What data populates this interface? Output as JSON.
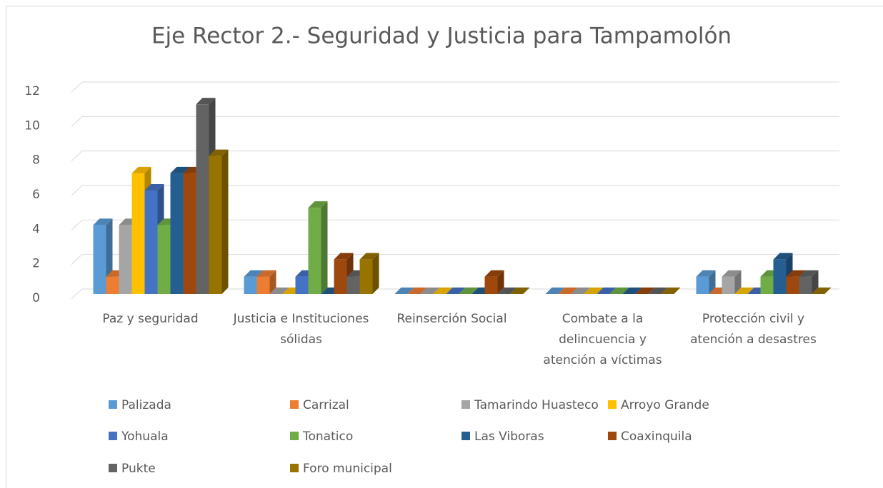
{
  "chart_data": {
    "type": "bar",
    "title": "Eje Rector 2.- Seguridad y Justicia para Tampamolón",
    "categories": [
      "Paz y seguridad",
      "Justicia e Instituciones sólidas",
      "Reinserción Social",
      "Combate a la delincuencia y atención a víctimas",
      "Protección civil y atención a desastres"
    ],
    "series": [
      {
        "name": "Palizada",
        "color": "#5b9bd5",
        "values": [
          4,
          1,
          0,
          0,
          1
        ]
      },
      {
        "name": "Carrizal",
        "color": "#ed7d31",
        "values": [
          1,
          1,
          0,
          0,
          0
        ]
      },
      {
        "name": "Tamarindo Huasteco",
        "color": "#a5a5a5",
        "values": [
          4,
          0,
          0,
          0,
          1
        ]
      },
      {
        "name": "Arroyo Grande",
        "color": "#ffc000",
        "values": [
          7,
          0,
          0,
          0,
          0
        ]
      },
      {
        "name": "Yohuala",
        "color": "#4472c4",
        "values": [
          6,
          1,
          0,
          0,
          0
        ]
      },
      {
        "name": "Tonatico",
        "color": "#70ad47",
        "values": [
          4,
          5,
          0,
          0,
          1
        ]
      },
      {
        "name": "Las Viboras",
        "color": "#255e91",
        "values": [
          7,
          0,
          0,
          0,
          2
        ]
      },
      {
        "name": "Coaxinquila",
        "color": "#9e480e",
        "values": [
          7,
          2,
          1,
          0,
          1
        ]
      },
      {
        "name": "Pukte",
        "color": "#636363",
        "values": [
          11,
          1,
          0,
          0,
          1
        ]
      },
      {
        "name": "Foro municipal",
        "color": "#997300",
        "values": [
          8,
          2,
          0,
          0,
          0
        ]
      }
    ],
    "ylim": [
      0,
      12
    ],
    "yticks": [
      0,
      2,
      4,
      6,
      8,
      10,
      12
    ],
    "grid": true,
    "legend": "bottom"
  }
}
